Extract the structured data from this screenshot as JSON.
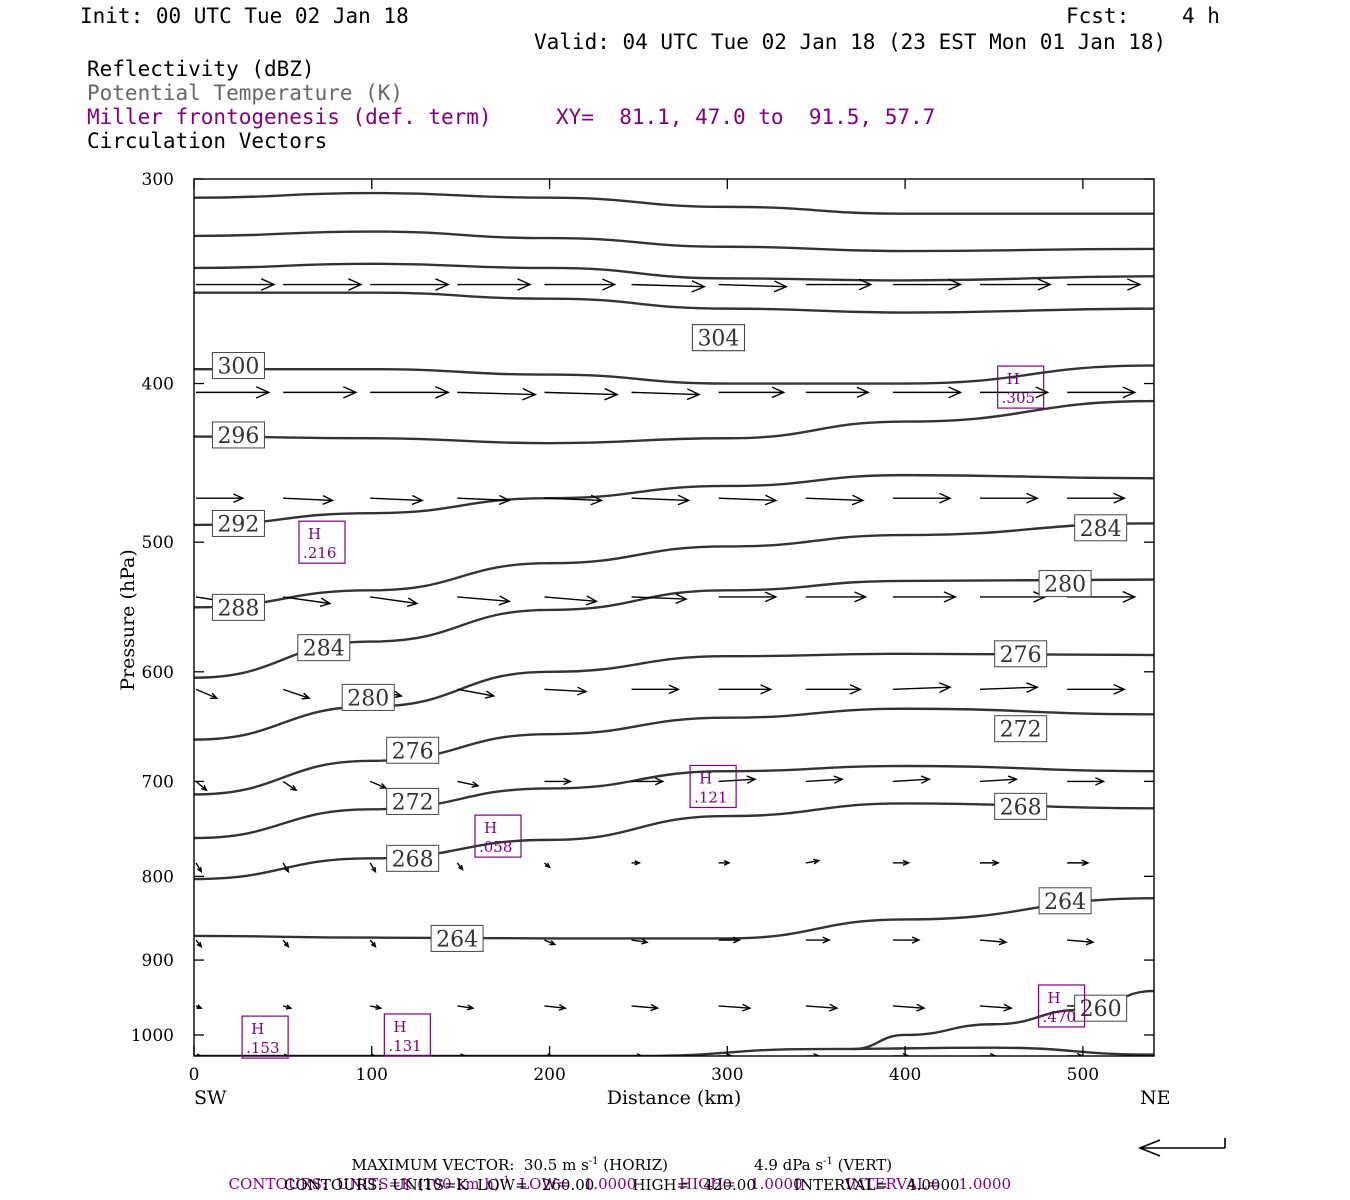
{
  "header": {
    "init": "Init: 00 UTC Tue 02 Jan 18",
    "fcst_label": "Fcst:",
    "fcst_value": "4 h",
    "valid": "Valid: 04 UTC Tue 02 Jan 18 (23 EST Mon 01 Jan 18)"
  },
  "legend": {
    "reflectivity": "Reflectivity (dBZ)",
    "potential_temperature": "Potential Temperature (K)",
    "frontogenesis": "Miller frontogenesis (def. term)",
    "xy": "XY=  81.1, 47.0 to  91.5, 57.7",
    "circulation": "Circulation Vectors"
  },
  "colors": {
    "contour": "#333333",
    "frontogenesis": "#800080",
    "text": "#000000",
    "gray_text": "#666666"
  },
  "chart_data": {
    "type": "line",
    "title": "",
    "xlabel": "Distance (km)",
    "ylabel": "Pressure (hPa)",
    "xlim": [
      0,
      540
    ],
    "ylim": [
      1030,
      300
    ],
    "y_scale": "log",
    "x_ticks": [
      0,
      100,
      200,
      300,
      400,
      500
    ],
    "y_ticks": [
      300,
      400,
      500,
      600,
      700,
      800,
      900,
      1000
    ],
    "x_end_labels": {
      "left": "SW",
      "right": "NE"
    },
    "potential_temperature_contours": [
      {
        "label": "304",
        "label_pos": [
          295,
          375
        ],
        "points": [
          [
            0,
            352
          ],
          [
            100,
            352
          ],
          [
            200,
            355
          ],
          [
            300,
            360
          ],
          [
            400,
            362
          ],
          [
            540,
            360
          ]
        ]
      },
      {
        "label": "",
        "label_pos": null,
        "points": [
          [
            0,
            308
          ],
          [
            100,
            306
          ],
          [
            200,
            308
          ],
          [
            300,
            312
          ],
          [
            400,
            315
          ],
          [
            540,
            315
          ]
        ]
      },
      {
        "label": "",
        "label_pos": null,
        "points": [
          [
            0,
            325
          ],
          [
            100,
            323
          ],
          [
            200,
            326
          ],
          [
            300,
            330
          ],
          [
            400,
            332
          ],
          [
            540,
            331
          ]
        ]
      },
      {
        "label": "",
        "label_pos": null,
        "points": [
          [
            0,
            340
          ],
          [
            100,
            338
          ],
          [
            200,
            340
          ],
          [
            300,
            345
          ],
          [
            400,
            346
          ],
          [
            540,
            344
          ]
        ]
      },
      {
        "label": "300",
        "label_pos": [
          25,
          390
        ],
        "points": [
          [
            0,
            392
          ],
          [
            100,
            392
          ],
          [
            200,
            395
          ],
          [
            300,
            400
          ],
          [
            400,
            400
          ],
          [
            540,
            390
          ]
        ]
      },
      {
        "label": "296",
        "label_pos": [
          25,
          430
        ],
        "points": [
          [
            0,
            431
          ],
          [
            100,
            432
          ],
          [
            200,
            435
          ],
          [
            300,
            432
          ],
          [
            400,
            422
          ],
          [
            540,
            410
          ]
        ]
      },
      {
        "label": "292",
        "label_pos": [
          25,
          487
        ],
        "points": [
          [
            0,
            488
          ],
          [
            100,
            480
          ],
          [
            200,
            470
          ],
          [
            300,
            462
          ],
          [
            400,
            455
          ],
          [
            540,
            457
          ]
        ]
      },
      {
        "label": "288",
        "label_pos": [
          25,
          548
        ],
        "points": [
          [
            0,
            548
          ],
          [
            100,
            535
          ],
          [
            200,
            515
          ],
          [
            300,
            503
          ],
          [
            400,
            495
          ],
          [
            540,
            487
          ]
        ]
      },
      {
        "label": "284",
        "label_pos": [
          73,
          580
        ],
        "points": [
          [
            0,
            605
          ],
          [
            100,
            575
          ],
          [
            200,
            550
          ],
          [
            300,
            535
          ],
          [
            400,
            528
          ],
          [
            540,
            527
          ]
        ]
      },
      {
        "label": "280",
        "label_pos": [
          98,
          622
        ],
        "points": [
          [
            0,
            660
          ],
          [
            100,
            630
          ],
          [
            200,
            600
          ],
          [
            300,
            587
          ],
          [
            400,
            585
          ],
          [
            540,
            586
          ]
        ]
      },
      {
        "label": "276",
        "label_pos": [
          123,
          670
        ],
        "points": [
          [
            0,
            713
          ],
          [
            100,
            680
          ],
          [
            200,
            655
          ],
          [
            300,
            640
          ],
          [
            400,
            632
          ],
          [
            540,
            637
          ]
        ]
      },
      {
        "label": "272",
        "label_pos": [
          123,
          720
        ],
        "points": [
          [
            0,
            758
          ],
          [
            100,
            728
          ],
          [
            200,
            707
          ],
          [
            300,
            690
          ],
          [
            400,
            685
          ],
          [
            540,
            690
          ]
        ]
      },
      {
        "label": "268",
        "label_pos": [
          123,
          780
        ],
        "points": [
          [
            0,
            803
          ],
          [
            100,
            780
          ],
          [
            200,
            760
          ],
          [
            300,
            735
          ],
          [
            400,
            722
          ],
          [
            540,
            727
          ]
        ]
      },
      {
        "label": "264",
        "label_pos": [
          148,
          873
        ],
        "points": [
          [
            0,
            870
          ],
          [
            100,
            872
          ],
          [
            200,
            873
          ],
          [
            300,
            873
          ],
          [
            400,
            850
          ],
          [
            540,
            825
          ]
        ]
      },
      {
        "label": "260",
        "label_pos": [
          510,
          963
        ],
        "points": [
          [
            370,
            1020
          ],
          [
            400,
            1000
          ],
          [
            450,
            985
          ],
          [
            500,
            965
          ],
          [
            540,
            940
          ]
        ]
      },
      {
        "label": "",
        "label_pos": null,
        "points": [
          [
            0,
            1030
          ],
          [
            100,
            1030
          ],
          [
            250,
            1030
          ],
          [
            350,
            1020
          ],
          [
            450,
            1018
          ],
          [
            540,
            1028
          ]
        ]
      }
    ],
    "potential_temperature_side_labels": [
      {
        "label": "304",
        "x": 295,
        "p": 375
      },
      {
        "label": "284",
        "x": 510,
        "p": 490
      },
      {
        "label": "280",
        "x": 490,
        "p": 530
      },
      {
        "label": "276",
        "x": 465,
        "p": 585
      },
      {
        "label": "272",
        "x": 465,
        "p": 650
      },
      {
        "label": "268",
        "x": 465,
        "p": 725
      },
      {
        "label": "264",
        "x": 490,
        "p": 828
      }
    ],
    "frontogenesis_maxima": [
      {
        "symbol": "H",
        "value": ".305",
        "x": 465,
        "p": 402
      },
      {
        "symbol": "H",
        "value": ".216",
        "x": 72,
        "p": 500
      },
      {
        "symbol": "H",
        "value": ".121",
        "x": 292,
        "p": 705
      },
      {
        "symbol": "H",
        "value": ".058",
        "x": 171,
        "p": 756
      },
      {
        "symbol": "H",
        "value": ".470",
        "x": 488,
        "p": 960
      },
      {
        "symbol": "H",
        "value": ".153",
        "x": 40,
        "p": 1003
      },
      {
        "symbol": "H",
        "value": ".131",
        "x": 120,
        "p": 1000
      }
    ],
    "circulation_vectors": {
      "columns_x_km": [
        0,
        49,
        98,
        147,
        196,
        245,
        294,
        343,
        392,
        441,
        490,
        540
      ],
      "rows": [
        {
          "p": 348,
          "u": [
            30,
            30,
            30,
            28,
            27,
            28,
            26,
            25,
            26,
            27,
            28,
            28
          ],
          "w": [
            0,
            0,
            0,
            0,
            0,
            1,
            1,
            0,
            0,
            0,
            0,
            0
          ]
        },
        {
          "p": 405,
          "u": [
            28,
            28,
            30,
            30,
            28,
            26,
            25,
            24,
            26,
            26,
            26,
            26
          ],
          "w": [
            0,
            0,
            0,
            1,
            1,
            1,
            0,
            0,
            0,
            0,
            0,
            0
          ]
        },
        {
          "p": 470,
          "u": [
            18,
            19,
            20,
            20,
            22,
            22,
            22,
            22,
            22,
            22,
            22,
            22
          ],
          "w": [
            0,
            1,
            1,
            1,
            1,
            1,
            1,
            1,
            0,
            0,
            0,
            0
          ]
        },
        {
          "p": 540,
          "u": [
            16,
            18,
            18,
            20,
            20,
            21,
            22,
            23,
            24,
            25,
            26,
            27
          ],
          "w": [
            3,
            3,
            3,
            2,
            2,
            1,
            0,
            0,
            0,
            0,
            0,
            0
          ]
        },
        {
          "p": 615,
          "u": [
            8,
            10,
            12,
            14,
            16,
            18,
            20,
            21,
            22,
            22,
            22,
            22
          ],
          "w": [
            4,
            4,
            3,
            3,
            1,
            0,
            0,
            0,
            -1,
            -1,
            0,
            0
          ]
        },
        {
          "p": 700,
          "u": [
            4,
            5,
            6,
            8,
            10,
            12,
            14,
            14,
            14,
            14,
            14,
            14
          ],
          "w": [
            4,
            4,
            3,
            2,
            0,
            0,
            -1,
            -1,
            -1,
            -1,
            0,
            0
          ]
        },
        {
          "p": 785,
          "u": [
            2,
            2,
            2,
            2,
            2,
            3,
            4,
            5,
            6,
            7,
            8,
            8
          ],
          "w": [
            4,
            4,
            4,
            3,
            2,
            0,
            0,
            -1,
            0,
            0,
            0,
            0
          ]
        },
        {
          "p": 875,
          "u": [
            2,
            2,
            2,
            3,
            4,
            6,
            8,
            9,
            10,
            10,
            10,
            10
          ],
          "w": [
            3,
            3,
            3,
            2,
            2,
            1,
            0,
            0,
            0,
            1,
            1,
            0
          ]
        },
        {
          "p": 960,
          "u": [
            2,
            3,
            4,
            6,
            8,
            10,
            12,
            12,
            12,
            12,
            12,
            12
          ],
          "w": [
            1,
            1,
            1,
            1,
            1,
            1,
            1,
            1,
            1,
            1,
            0,
            0
          ]
        },
        {
          "p": 1030,
          "u": [
            2,
            2,
            2,
            3,
            3,
            4,
            5,
            5,
            6,
            6,
            6,
            6
          ],
          "w": [
            0,
            0,
            0,
            0,
            0,
            0,
            0,
            0,
            0,
            0,
            0,
            0
          ]
        }
      ]
    }
  },
  "footer": {
    "max_vector": "MAXIMUM VECTOR:  30.5 m s",
    "max_vector_exp": "-1",
    "max_vector_horiz": " (HORIZ)",
    "max_vector_vert": "4.9 dPa s",
    "max_vector_vert_exp": "-1",
    "max_vector_vert_tail": " (VERT)",
    "contours1_a": "CONTOURS:  UNITS=K (100 km h)",
    "contours1_exp": "-1",
    "contours1_b": "  LOW=   1.0000         HIGH=   1.0000         INTERVAL=    1.0000",
    "contours2": "CONTOURS:  UNITS=K  LOW=   260.00        HIGH=   420.00        INTERVAL=    4.0000"
  }
}
